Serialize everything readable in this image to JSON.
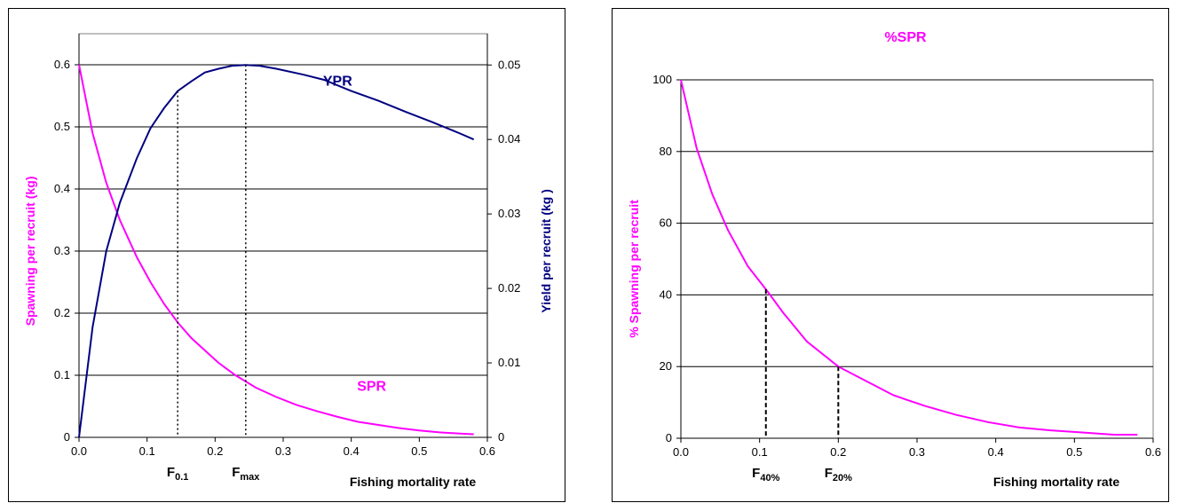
{
  "colors": {
    "spr": "#ff00ff",
    "ypr": "#000080",
    "axis": "#000000",
    "grid": "#000000",
    "frame": "#000000",
    "background": "#ffffff"
  },
  "chart_data": [
    {
      "type": "line",
      "title": "",
      "xlabel": "Fishing mortality rate",
      "ylabel_left": "Spawning per recruit (kg)",
      "ylabel_right": "Yield per recruit (kg )",
      "xlim": [
        0,
        0.6
      ],
      "ylim_left": [
        0,
        0.65
      ],
      "ylim_right": [
        0,
        0.0542
      ],
      "x_ticks": [
        "0.0",
        "0.1",
        "0.2",
        "0.3",
        "0.4",
        "0.5",
        "0.6"
      ],
      "y_ticks_left": [
        "0",
        "0.1",
        "0.2",
        "0.3",
        "0.4",
        "0.5",
        "0.6"
      ],
      "y_ticks_right": [
        "0",
        "0.01",
        "0.02",
        "0.03",
        "0.04",
        "0.05"
      ],
      "grid": "horizontal",
      "series": [
        {
          "name": "SPR",
          "axis": "left",
          "color": "#ff00ff",
          "x": [
            0,
            0.02,
            0.04,
            0.06,
            0.085,
            0.105,
            0.125,
            0.145,
            0.165,
            0.185,
            0.205,
            0.23,
            0.26,
            0.29,
            0.32,
            0.35,
            0.38,
            0.41,
            0.44,
            0.47,
            0.5,
            0.53,
            0.56,
            0.58
          ],
          "values": [
            0.6,
            0.49,
            0.41,
            0.35,
            0.29,
            0.25,
            0.215,
            0.185,
            0.16,
            0.14,
            0.12,
            0.1,
            0.08,
            0.065,
            0.052,
            0.042,
            0.033,
            0.025,
            0.02,
            0.015,
            0.011,
            0.008,
            0.006,
            0.005
          ]
        },
        {
          "name": "YPR",
          "axis": "right",
          "color": "#000080",
          "x": [
            0,
            0.02,
            0.04,
            0.06,
            0.085,
            0.105,
            0.125,
            0.145,
            0.165,
            0.185,
            0.205,
            0.225,
            0.245,
            0.265,
            0.29,
            0.33,
            0.36,
            0.4,
            0.44,
            0.48,
            0.52,
            0.56,
            0.58
          ],
          "values": [
            0,
            0.0148,
            0.025,
            0.0315,
            0.0375,
            0.0415,
            0.0442,
            0.0465,
            0.0478,
            0.049,
            0.0495,
            0.0499,
            0.05,
            0.0499,
            0.0495,
            0.0487,
            0.048,
            0.0465,
            0.0452,
            0.0437,
            0.0423,
            0.0408,
            0.04
          ]
        }
      ],
      "annotations": [
        {
          "text": "SPR",
          "at_series": "SPR"
        },
        {
          "text": "YPR",
          "at_series": "YPR"
        },
        {
          "text": "F",
          "sub": "0.1",
          "x": 0.145
        },
        {
          "text": "F",
          "sub": "max",
          "x": 0.245
        }
      ]
    },
    {
      "type": "line",
      "title": "%SPR",
      "xlabel": "Fishing mortality rate",
      "ylabel": "% Spawning per recruit",
      "xlim": [
        0,
        0.6
      ],
      "ylim": [
        0,
        100
      ],
      "x_ticks": [
        "0.0",
        "0.1",
        "0.2",
        "0.3",
        "0.4",
        "0.5",
        "0.6"
      ],
      "y_ticks": [
        "0",
        "20",
        "40",
        "60",
        "80",
        "100"
      ],
      "grid": "horizontal",
      "series": [
        {
          "name": "%SPR",
          "color": "#ff00ff",
          "x": [
            0,
            0.02,
            0.04,
            0.06,
            0.085,
            0.11,
            0.13,
            0.16,
            0.2,
            0.235,
            0.27,
            0.31,
            0.35,
            0.39,
            0.43,
            0.47,
            0.51,
            0.55,
            0.58
          ],
          "values": [
            100,
            81,
            68,
            58,
            48,
            41,
            35,
            27,
            20,
            16,
            12,
            9,
            6.5,
            4.5,
            3,
            2.2,
            1.6,
            1,
            1
          ]
        }
      ],
      "annotations": [
        {
          "text": "F",
          "sub": "40%",
          "x": 0.108
        },
        {
          "text": "F",
          "sub": "20%",
          "x": 0.2
        }
      ]
    }
  ]
}
